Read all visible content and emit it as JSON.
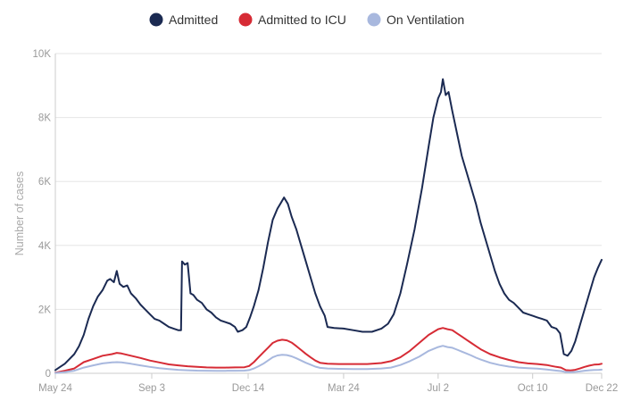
{
  "chart_data": {
    "type": "line",
    "ylabel": "Number of cases",
    "ylim": [
      0,
      10000
    ],
    "y_ticks": [
      {
        "value": 0,
        "label": "0"
      },
      {
        "value": 2000,
        "label": "2K"
      },
      {
        "value": 4000,
        "label": "4K"
      },
      {
        "value": 6000,
        "label": "6K"
      },
      {
        "value": 8000,
        "label": "8K"
      },
      {
        "value": 10000,
        "label": "10K"
      }
    ],
    "x_ticks": [
      {
        "x": 0,
        "label": "May 24"
      },
      {
        "x": 102,
        "label": "Sep 3"
      },
      {
        "x": 204,
        "label": "Dec 14"
      },
      {
        "x": 305,
        "label": "Mar 24"
      },
      {
        "x": 405,
        "label": "Jul 2"
      },
      {
        "x": 505,
        "label": "Oct 10"
      },
      {
        "x": 578,
        "label": "Dec 22"
      }
    ],
    "xlim": [
      0,
      578
    ],
    "grid": true,
    "legend_position": "top-center",
    "series": [
      {
        "name": "Admitted",
        "color": "#1b2a52",
        "points": [
          [
            0,
            100
          ],
          [
            5,
            200
          ],
          [
            10,
            300
          ],
          [
            15,
            450
          ],
          [
            20,
            600
          ],
          [
            25,
            850
          ],
          [
            30,
            1200
          ],
          [
            35,
            1700
          ],
          [
            40,
            2100
          ],
          [
            45,
            2400
          ],
          [
            50,
            2600
          ],
          [
            55,
            2900
          ],
          [
            58,
            2950
          ],
          [
            62,
            2850
          ],
          [
            65,
            3200
          ],
          [
            68,
            2800
          ],
          [
            72,
            2700
          ],
          [
            76,
            2750
          ],
          [
            80,
            2500
          ],
          [
            85,
            2350
          ],
          [
            90,
            2150
          ],
          [
            95,
            2000
          ],
          [
            100,
            1850
          ],
          [
            105,
            1700
          ],
          [
            110,
            1650
          ],
          [
            115,
            1550
          ],
          [
            120,
            1450
          ],
          [
            125,
            1400
          ],
          [
            130,
            1350
          ],
          [
            133,
            1350
          ],
          [
            134,
            3500
          ],
          [
            137,
            3400
          ],
          [
            140,
            3450
          ],
          [
            143,
            2500
          ],
          [
            146,
            2450
          ],
          [
            150,
            2300
          ],
          [
            155,
            2200
          ],
          [
            160,
            2000
          ],
          [
            165,
            1900
          ],
          [
            170,
            1750
          ],
          [
            175,
            1650
          ],
          [
            180,
            1600
          ],
          [
            185,
            1550
          ],
          [
            190,
            1450
          ],
          [
            193,
            1300
          ],
          [
            198,
            1350
          ],
          [
            202,
            1450
          ],
          [
            206,
            1750
          ],
          [
            210,
            2100
          ],
          [
            215,
            2600
          ],
          [
            220,
            3300
          ],
          [
            225,
            4100
          ],
          [
            230,
            4800
          ],
          [
            235,
            5150
          ],
          [
            238,
            5300
          ],
          [
            242,
            5500
          ],
          [
            246,
            5300
          ],
          [
            250,
            4900
          ],
          [
            255,
            4500
          ],
          [
            260,
            4000
          ],
          [
            265,
            3500
          ],
          [
            270,
            3000
          ],
          [
            275,
            2500
          ],
          [
            280,
            2100
          ],
          [
            285,
            1800
          ],
          [
            288,
            1450
          ],
          [
            295,
            1420
          ],
          [
            305,
            1400
          ],
          [
            315,
            1350
          ],
          [
            325,
            1300
          ],
          [
            335,
            1300
          ],
          [
            345,
            1400
          ],
          [
            352,
            1550
          ],
          [
            358,
            1850
          ],
          [
            365,
            2500
          ],
          [
            372,
            3400
          ],
          [
            380,
            4500
          ],
          [
            388,
            5800
          ],
          [
            395,
            7100
          ],
          [
            400,
            8000
          ],
          [
            405,
            8600
          ],
          [
            408,
            8800
          ],
          [
            410,
            9200
          ],
          [
            413,
            8700
          ],
          [
            416,
            8800
          ],
          [
            420,
            8200
          ],
          [
            425,
            7500
          ],
          [
            430,
            6800
          ],
          [
            435,
            6300
          ],
          [
            440,
            5800
          ],
          [
            445,
            5300
          ],
          [
            450,
            4700
          ],
          [
            455,
            4200
          ],
          [
            460,
            3700
          ],
          [
            465,
            3200
          ],
          [
            470,
            2800
          ],
          [
            475,
            2500
          ],
          [
            480,
            2300
          ],
          [
            485,
            2200
          ],
          [
            490,
            2050
          ],
          [
            495,
            1900
          ],
          [
            500,
            1850
          ],
          [
            505,
            1800
          ],
          [
            510,
            1750
          ],
          [
            515,
            1700
          ],
          [
            520,
            1650
          ],
          [
            525,
            1450
          ],
          [
            530,
            1400
          ],
          [
            534,
            1250
          ],
          [
            538,
            600
          ],
          [
            542,
            550
          ],
          [
            546,
            700
          ],
          [
            550,
            1000
          ],
          [
            555,
            1500
          ],
          [
            560,
            2000
          ],
          [
            565,
            2500
          ],
          [
            570,
            3000
          ],
          [
            574,
            3300
          ],
          [
            578,
            3550
          ]
        ]
      },
      {
        "name": "Admitted to ICU",
        "color": "#d62b35",
        "points": [
          [
            0,
            20
          ],
          [
            10,
            80
          ],
          [
            20,
            150
          ],
          [
            30,
            350
          ],
          [
            40,
            450
          ],
          [
            50,
            550
          ],
          [
            60,
            600
          ],
          [
            65,
            640
          ],
          [
            70,
            620
          ],
          [
            80,
            550
          ],
          [
            90,
            480
          ],
          [
            100,
            400
          ],
          [
            110,
            340
          ],
          [
            120,
            280
          ],
          [
            130,
            250
          ],
          [
            140,
            220
          ],
          [
            150,
            200
          ],
          [
            160,
            185
          ],
          [
            170,
            180
          ],
          [
            180,
            180
          ],
          [
            190,
            185
          ],
          [
            200,
            190
          ],
          [
            205,
            230
          ],
          [
            210,
            350
          ],
          [
            215,
            500
          ],
          [
            220,
            650
          ],
          [
            225,
            800
          ],
          [
            230,
            950
          ],
          [
            235,
            1020
          ],
          [
            240,
            1050
          ],
          [
            245,
            1030
          ],
          [
            250,
            960
          ],
          [
            255,
            850
          ],
          [
            260,
            730
          ],
          [
            265,
            610
          ],
          [
            270,
            500
          ],
          [
            275,
            400
          ],
          [
            280,
            330
          ],
          [
            288,
            300
          ],
          [
            300,
            290
          ],
          [
            315,
            290
          ],
          [
            330,
            290
          ],
          [
            345,
            320
          ],
          [
            355,
            380
          ],
          [
            365,
            500
          ],
          [
            375,
            700
          ],
          [
            385,
            950
          ],
          [
            395,
            1200
          ],
          [
            405,
            1380
          ],
          [
            410,
            1420
          ],
          [
            415,
            1380
          ],
          [
            420,
            1350
          ],
          [
            425,
            1250
          ],
          [
            430,
            1150
          ],
          [
            435,
            1050
          ],
          [
            440,
            950
          ],
          [
            445,
            850
          ],
          [
            450,
            750
          ],
          [
            460,
            600
          ],
          [
            470,
            500
          ],
          [
            480,
            420
          ],
          [
            490,
            350
          ],
          [
            500,
            310
          ],
          [
            510,
            290
          ],
          [
            520,
            260
          ],
          [
            525,
            230
          ],
          [
            530,
            200
          ],
          [
            535,
            180
          ],
          [
            540,
            100
          ],
          [
            545,
            90
          ],
          [
            550,
            110
          ],
          [
            555,
            150
          ],
          [
            560,
            200
          ],
          [
            565,
            240
          ],
          [
            570,
            270
          ],
          [
            575,
            280
          ],
          [
            578,
            300
          ]
        ]
      },
      {
        "name": "On Ventilation",
        "color": "#a8b8de",
        "points": [
          [
            0,
            10
          ],
          [
            10,
            40
          ],
          [
            20,
            80
          ],
          [
            30,
            180
          ],
          [
            40,
            250
          ],
          [
            50,
            310
          ],
          [
            60,
            340
          ],
          [
            65,
            350
          ],
          [
            70,
            340
          ],
          [
            80,
            300
          ],
          [
            90,
            250
          ],
          [
            100,
            200
          ],
          [
            110,
            160
          ],
          [
            120,
            130
          ],
          [
            130,
            110
          ],
          [
            140,
            95
          ],
          [
            150,
            85
          ],
          [
            160,
            80
          ],
          [
            170,
            78
          ],
          [
            180,
            78
          ],
          [
            190,
            80
          ],
          [
            200,
            85
          ],
          [
            205,
            100
          ],
          [
            210,
            150
          ],
          [
            215,
            220
          ],
          [
            220,
            300
          ],
          [
            225,
            400
          ],
          [
            230,
            500
          ],
          [
            235,
            560
          ],
          [
            240,
            580
          ],
          [
            245,
            570
          ],
          [
            250,
            530
          ],
          [
            255,
            470
          ],
          [
            260,
            400
          ],
          [
            265,
            330
          ],
          [
            270,
            270
          ],
          [
            275,
            210
          ],
          [
            280,
            170
          ],
          [
            288,
            150
          ],
          [
            300,
            140
          ],
          [
            315,
            135
          ],
          [
            330,
            135
          ],
          [
            345,
            150
          ],
          [
            355,
            180
          ],
          [
            365,
            260
          ],
          [
            375,
            380
          ],
          [
            385,
            520
          ],
          [
            395,
            700
          ],
          [
            405,
            820
          ],
          [
            410,
            860
          ],
          [
            415,
            820
          ],
          [
            420,
            800
          ],
          [
            425,
            740
          ],
          [
            430,
            680
          ],
          [
            435,
            620
          ],
          [
            440,
            560
          ],
          [
            445,
            490
          ],
          [
            450,
            430
          ],
          [
            460,
            330
          ],
          [
            470,
            260
          ],
          [
            480,
            210
          ],
          [
            490,
            180
          ],
          [
            500,
            160
          ],
          [
            510,
            145
          ],
          [
            520,
            120
          ],
          [
            525,
            100
          ],
          [
            530,
            85
          ],
          [
            535,
            70
          ],
          [
            540,
            40
          ],
          [
            545,
            35
          ],
          [
            550,
            45
          ],
          [
            555,
            60
          ],
          [
            560,
            80
          ],
          [
            565,
            95
          ],
          [
            570,
            105
          ],
          [
            575,
            110
          ],
          [
            578,
            115
          ]
        ]
      }
    ]
  }
}
